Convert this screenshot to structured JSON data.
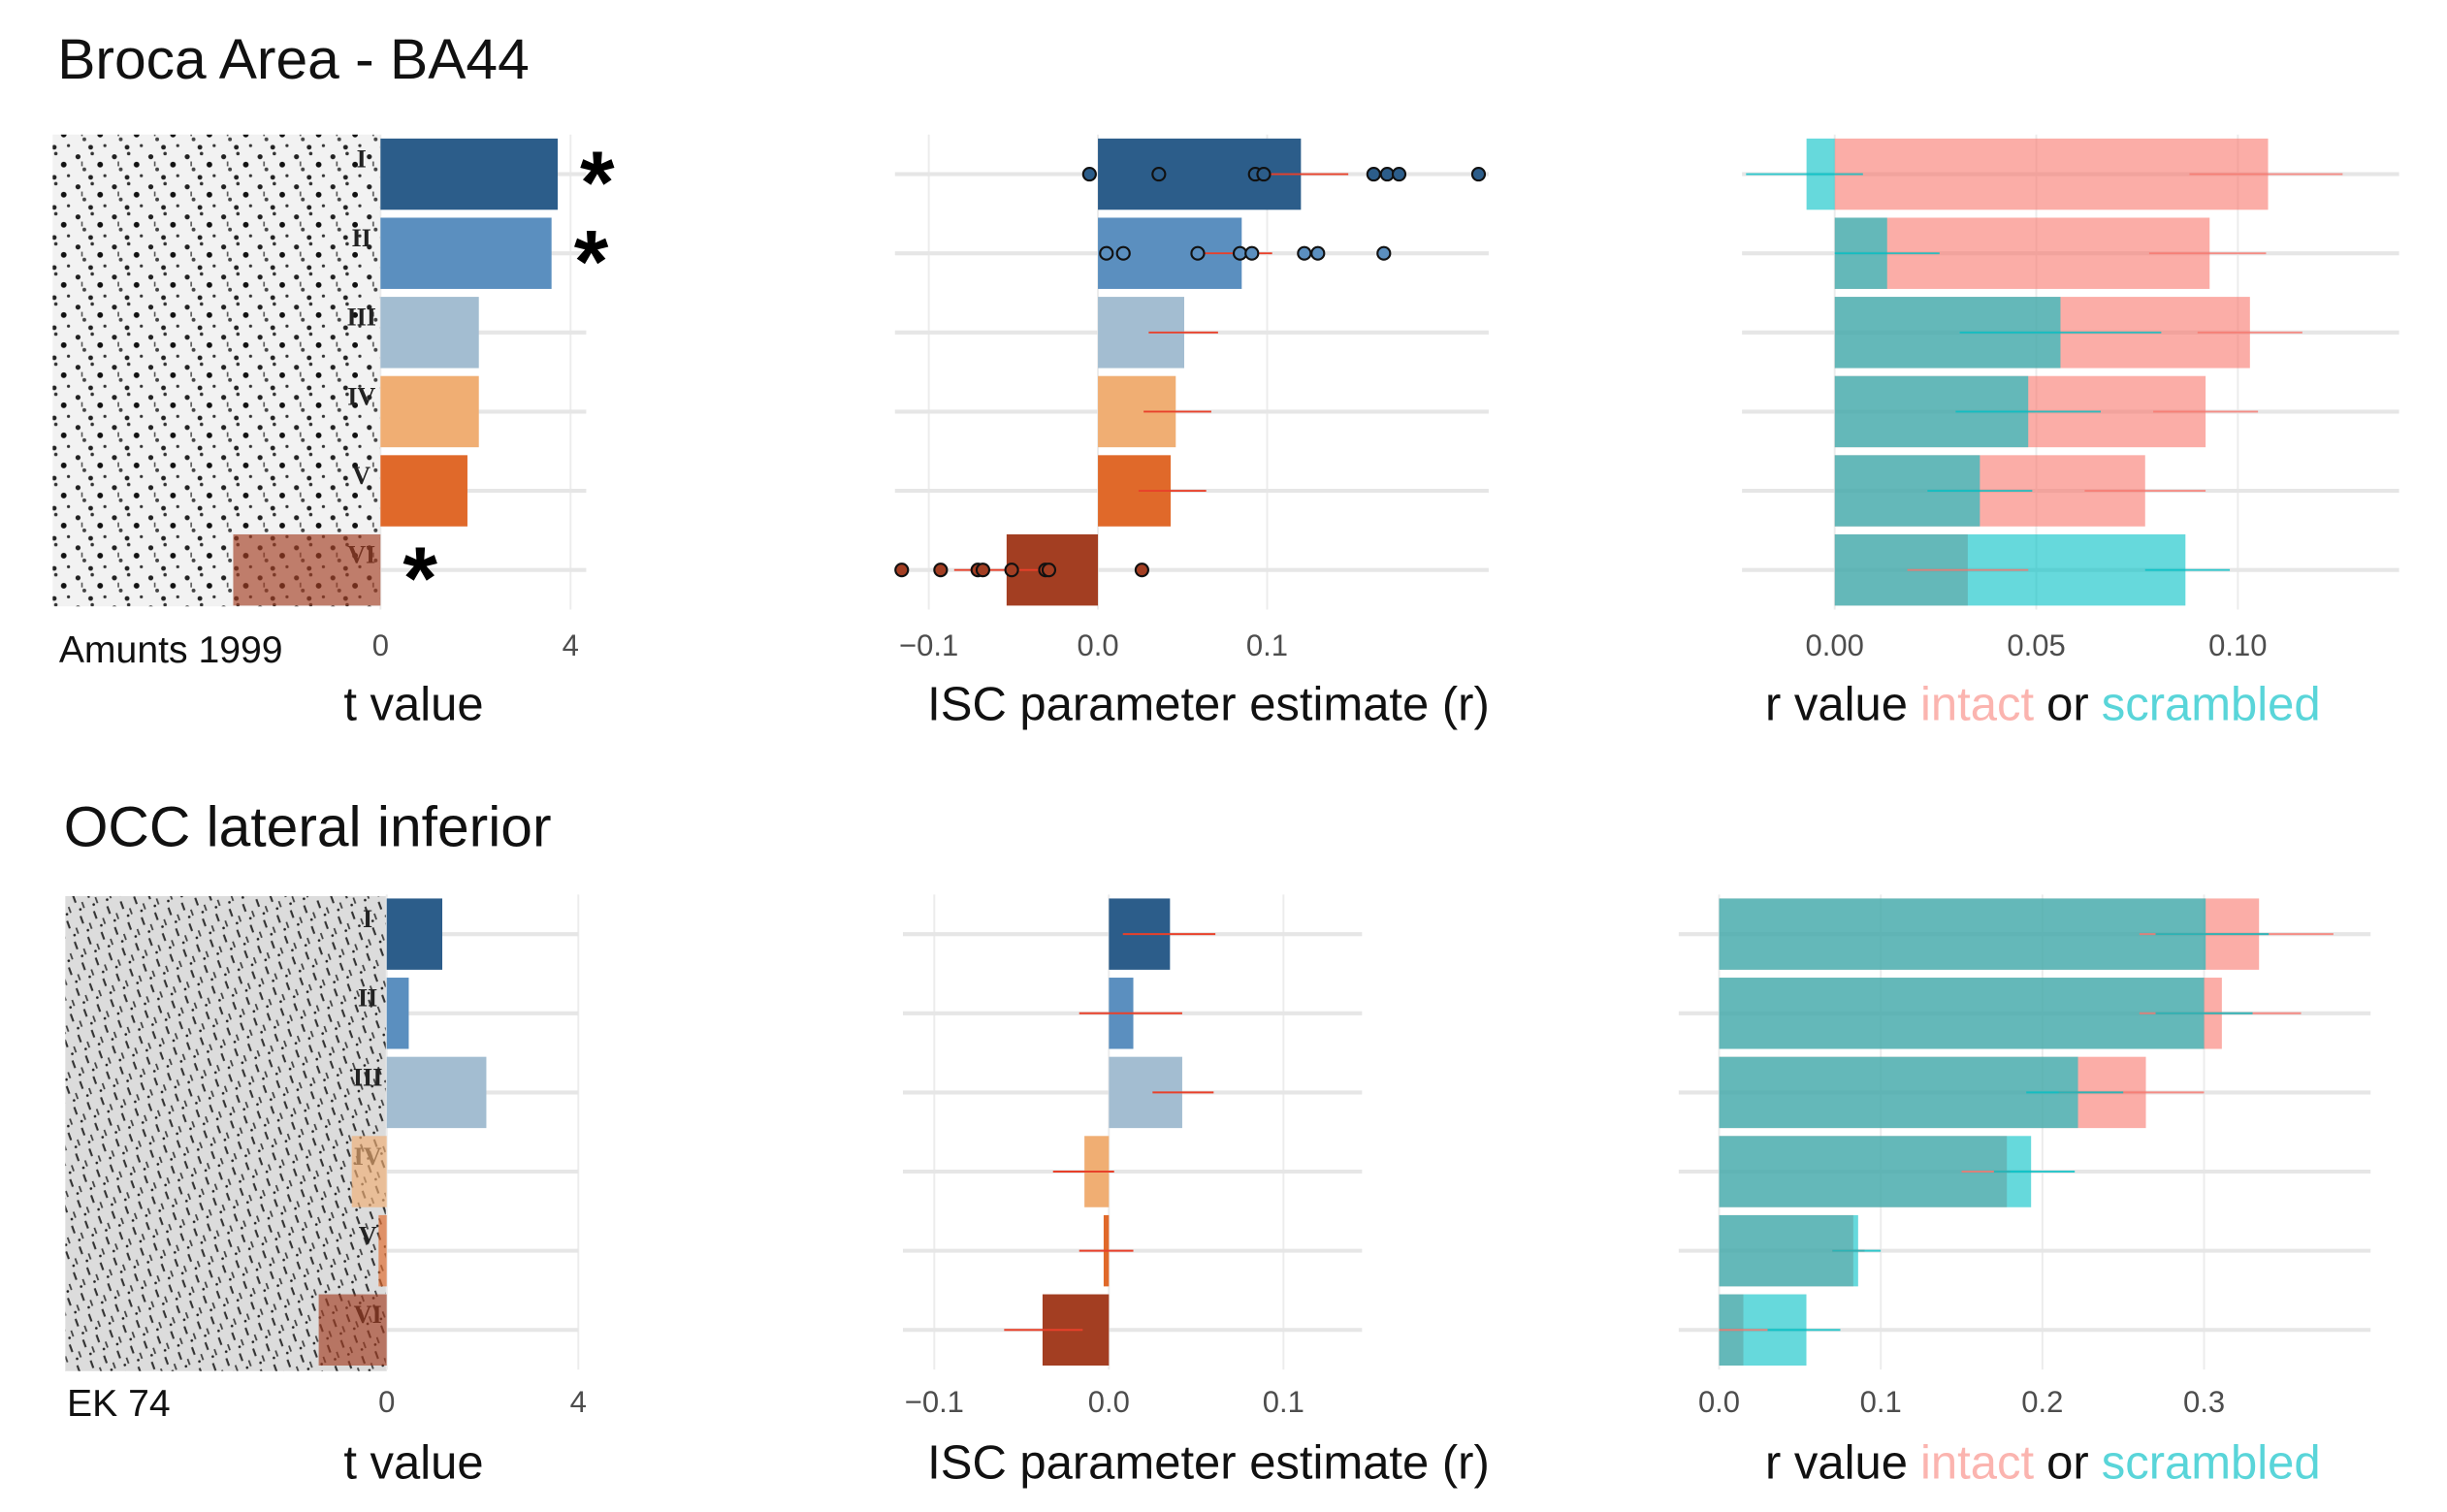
{
  "chart_data": [
    {
      "type": "bar",
      "title": "Broca Area - BA44",
      "source": "Amunts 1999",
      "layer_labels": [
        "I",
        "II",
        "III",
        "IV",
        "V",
        "VI"
      ],
      "values": [
        3.73,
        3.6,
        2.07,
        2.07,
        1.83,
        -3.1
      ],
      "value_labels": [
        "*",
        "*",
        null,
        null,
        null,
        "*"
      ],
      "colors": [
        "#2c5d8a",
        "#5b8fbf",
        "#a3bdd1",
        "#f0ae73",
        "#e0692a",
        "#a33e22"
      ],
      "xlabel": "t value",
      "xlim": [
        -6.9,
        4.33
      ],
      "xticks": [
        0,
        4
      ],
      "grid": true
    },
    {
      "type": "strip",
      "values": [
        0.12,
        0.085,
        0.051,
        0.046,
        0.043,
        -0.054
      ],
      "errors": [
        [
          0.09,
          0.148
        ],
        [
          0.06,
          0.103
        ],
        [
          0.03,
          0.071
        ],
        [
          0.027,
          0.067
        ],
        [
          0.024,
          0.064
        ],
        [
          -0.085,
          -0.03
        ]
      ],
      "points": [
        [
          -0.005,
          0.036,
          0.093,
          0.098,
          0.163,
          0.171,
          0.178,
          0.225
        ],
        [
          0.005,
          0.015,
          0.059,
          0.084,
          0.091,
          0.122,
          0.13,
          0.169
        ],
        [],
        [],
        [],
        [
          -0.116,
          -0.093,
          -0.071,
          -0.068,
          -0.051,
          -0.031,
          -0.029,
          0.026
        ]
      ],
      "colors": [
        "#2c5d8a",
        "#5b8fbf",
        "#a3bdd1",
        "#f0ae73",
        "#e0692a",
        "#a33e22"
      ],
      "error_color": "#e8402a",
      "xlabel": "ISC parameter estimate (r)",
      "xlim": [
        -0.12,
        0.231
      ],
      "xticks": [
        {
          "value": -0.1,
          "label": "−0.1"
        },
        {
          "value": 0,
          "label": "0.0"
        },
        0.1
      ],
      "grid": true
    },
    {
      "type": "overlay",
      "xlabel": "r value",
      "connector": "or",
      "opacity": 0.6,
      "series": [
        {
          "name": "intact",
          "color": "#F8766D",
          "values": [
            0.1075,
            0.093,
            0.103,
            0.092,
            0.077,
            0.033
          ],
          "errors": [
            [
              0.088,
              0.126
            ],
            [
              0.078,
              0.107
            ],
            [
              0.09,
              0.116
            ],
            [
              0.079,
              0.105
            ],
            [
              0.062,
              0.092
            ],
            [
              0.018,
              0.048
            ]
          ]
        },
        {
          "name": "scrambled",
          "color": "#00BFC4",
          "values": [
            -0.007,
            0.013,
            0.056,
            0.048,
            0.036,
            0.087
          ],
          "errors": [
            [
              -0.022,
              0.007
            ],
            [
              0,
              0.026
            ],
            [
              0.031,
              0.081
            ],
            [
              0.03,
              0.066
            ],
            [
              0.023,
              0.049
            ],
            [
              0.077,
              0.098
            ]
          ]
        }
      ],
      "xlim": [
        -0.023,
        0.14
      ],
      "xticks": [
        {
          "value": 0,
          "label": "0.00"
        },
        {
          "value": 0.05,
          "label": "0.05"
        },
        {
          "value": 0.1,
          "label": "0.10"
        }
      ],
      "grid": true
    },
    {
      "type": "bar",
      "title": "OCC lateral inferior",
      "source": "EK 74",
      "layer_labels": [
        "I",
        "II",
        "III",
        "IV",
        "V",
        "VI"
      ],
      "values": [
        1.16,
        0.46,
        2.08,
        -0.73,
        -0.17,
        -1.42
      ],
      "colors": [
        "#2c5d8a",
        "#5b8fbf",
        "#a3bdd1",
        "#f0ae73",
        "#e0692a",
        "#a33e22"
      ],
      "xlabel": "t value",
      "xlim": [
        -6.71,
        4
      ],
      "xticks": [
        0,
        4
      ],
      "grid": true
    },
    {
      "type": "strip",
      "values": [
        0.035,
        0.014,
        0.042,
        -0.014,
        -0.003,
        -0.038
      ],
      "errors": [
        [
          0.008,
          0.061
        ],
        [
          -0.017,
          0.042
        ],
        [
          0.025,
          0.06
        ],
        [
          -0.032,
          0.003
        ],
        [
          -0.017,
          0.014
        ],
        [
          -0.06,
          -0.015
        ]
      ],
      "colors": [
        "#2c5d8a",
        "#5b8fbf",
        "#a3bdd1",
        "#f0ae73",
        "#e0692a",
        "#a33e22"
      ],
      "error_color": "#e8402a",
      "xlabel": "ISC parameter estimate (r)",
      "xlim": [
        -0.118,
        0.145
      ],
      "xticks": [
        {
          "value": -0.1,
          "label": "−0.1"
        },
        {
          "value": 0,
          "label": "0.0"
        },
        0.1
      ],
      "grid": true
    },
    {
      "type": "overlay",
      "xlabel": "r value",
      "connector": "or",
      "opacity": 0.6,
      "series": [
        {
          "name": "intact",
          "color": "#F8766D",
          "values": [
            0.334,
            0.311,
            0.264,
            0.178,
            0.083,
            0.015
          ],
          "errors": [
            [
              0.26,
              0.38
            ],
            [
              0.26,
              0.36
            ],
            [
              0.21,
              0.3
            ],
            [
              0.15,
              0.18
            ],
            [
              0.07,
              0.09
            ],
            [
              0,
              0.03
            ]
          ]
        },
        {
          "name": "scrambled",
          "color": "#00BFC4",
          "values": [
            0.301,
            0.3,
            0.222,
            0.193,
            0.086,
            0.054
          ],
          "errors": [
            [
              0.27,
              0.34
            ],
            [
              0.27,
              0.33
            ],
            [
              0.19,
              0.25
            ],
            [
              0.17,
              0.22
            ],
            [
              0.07,
              0.1
            ],
            [
              0.03,
              0.075
            ]
          ]
        }
      ],
      "xlim": [
        -0.025,
        0.403
      ],
      "xticks": [
        {
          "value": 0,
          "label": "0.0"
        },
        0.1,
        0.2,
        0.3
      ],
      "grid": true
    }
  ]
}
